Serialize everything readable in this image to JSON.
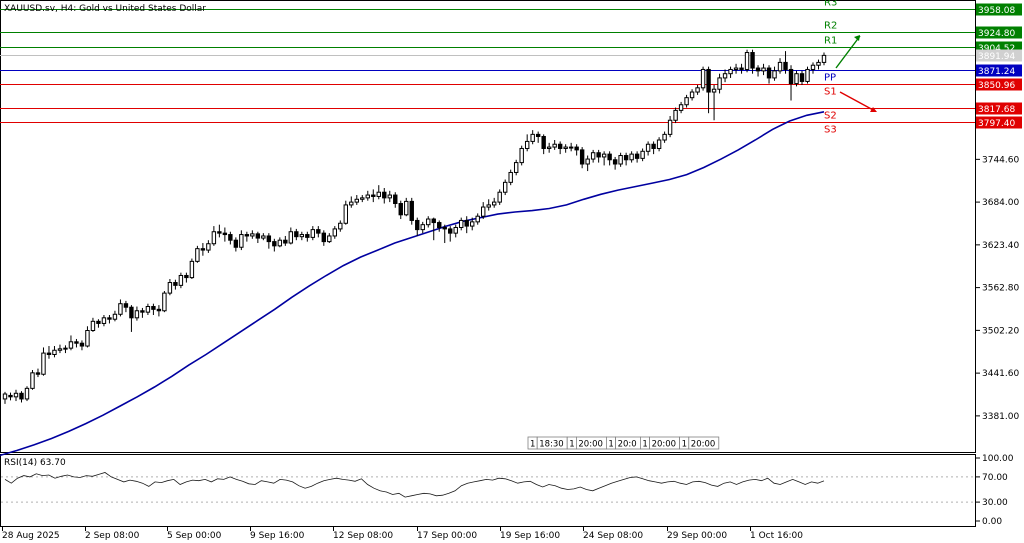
{
  "chart_data": {
    "type": "candlestick",
    "title": "XAUUSD.sv, H4:  Gold vs United States Dollar",
    "price_axis": {
      "ticks": [
        3381.0,
        3441.6,
        3502.2,
        3562.8,
        3623.4,
        3684.0,
        3744.6
      ]
    },
    "levels": [
      {
        "name": "R3",
        "value": "3958.08",
        "color": "#008000"
      },
      {
        "name": "R2",
        "value": "3924.80",
        "color": "#008000"
      },
      {
        "name": "R1",
        "value": "3904.52",
        "color": "#008000"
      },
      {
        "name": "PP",
        "value": "3871.24",
        "color": "#0000c0"
      },
      {
        "name": "S1",
        "value": "3850.96",
        "color": "#e00000"
      },
      {
        "name": "S2",
        "value": "3817.68",
        "color": "#e00000"
      },
      {
        "name": "S3",
        "value": "3797.40",
        "color": "#e00000"
      }
    ],
    "current_price": "3891.94",
    "moving_average": [
      3325,
      3332,
      3340,
      3349,
      3359,
      3370,
      3382,
      3395,
      3408,
      3422,
      3437,
      3453,
      3468,
      3484,
      3500,
      3516,
      3532,
      3549,
      3565,
      3580,
      3594,
      3606,
      3616,
      3626,
      3634,
      3642,
      3650,
      3657,
      3662,
      3667,
      3670,
      3672,
      3675,
      3680,
      3688,
      3695,
      3701,
      3706,
      3711,
      3716,
      3723,
      3733,
      3745,
      3758,
      3772,
      3787,
      3799,
      3807,
      3812
    ],
    "candles": [
      [
        3405,
        3412,
        3398,
        3415
      ],
      [
        3410,
        3408,
        3403,
        3414
      ],
      [
        3408,
        3413,
        3402,
        3418
      ],
      [
        3413,
        3405,
        3400,
        3416
      ],
      [
        3405,
        3420,
        3402,
        3423
      ],
      [
        3420,
        3442,
        3418,
        3446
      ],
      [
        3442,
        3440,
        3436,
        3448
      ],
      [
        3440,
        3470,
        3438,
        3478
      ],
      [
        3470,
        3468,
        3462,
        3480
      ],
      [
        3468,
        3474,
        3464,
        3480
      ],
      [
        3474,
        3476,
        3470,
        3482
      ],
      [
        3476,
        3477,
        3470,
        3481
      ],
      [
        3477,
        3486,
        3474,
        3495
      ],
      [
        3486,
        3484,
        3478,
        3490
      ],
      [
        3484,
        3480,
        3474,
        3488
      ],
      [
        3480,
        3502,
        3478,
        3508
      ],
      [
        3502,
        3515,
        3500,
        3520
      ],
      [
        3515,
        3512,
        3506,
        3518
      ],
      [
        3512,
        3520,
        3508,
        3524
      ],
      [
        3520,
        3518,
        3512,
        3524
      ],
      [
        3518,
        3525,
        3515,
        3530
      ],
      [
        3525,
        3540,
        3522,
        3546
      ],
      [
        3540,
        3535,
        3528,
        3544
      ],
      [
        3535,
        3520,
        3500,
        3538
      ],
      [
        3520,
        3530,
        3516,
        3536
      ],
      [
        3530,
        3528,
        3520,
        3534
      ],
      [
        3528,
        3536,
        3524,
        3540
      ],
      [
        3536,
        3532,
        3524,
        3540
      ],
      [
        3532,
        3530,
        3522,
        3538
      ],
      [
        3530,
        3555,
        3528,
        3558
      ],
      [
        3555,
        3570,
        3552,
        3575
      ],
      [
        3570,
        3566,
        3560,
        3574
      ],
      [
        3566,
        3580,
        3562,
        3584
      ],
      [
        3580,
        3577,
        3570,
        3584
      ],
      [
        3577,
        3600,
        3575,
        3604
      ],
      [
        3600,
        3618,
        3598,
        3622
      ],
      [
        3618,
        3616,
        3608,
        3626
      ],
      [
        3616,
        3625,
        3612,
        3630
      ],
      [
        3625,
        3642,
        3622,
        3650
      ],
      [
        3642,
        3640,
        3634,
        3652
      ],
      [
        3640,
        3638,
        3628,
        3648
      ],
      [
        3638,
        3630,
        3624,
        3642
      ],
      [
        3630,
        3620,
        3614,
        3634
      ],
      [
        3620,
        3638,
        3616,
        3644
      ],
      [
        3638,
        3636,
        3628,
        3642
      ],
      [
        3636,
        3639,
        3632,
        3644
      ],
      [
        3639,
        3633,
        3626,
        3642
      ],
      [
        3633,
        3636,
        3630,
        3640
      ],
      [
        3636,
        3628,
        3618,
        3640
      ],
      [
        3628,
        3622,
        3614,
        3632
      ],
      [
        3622,
        3630,
        3620,
        3634
      ],
      [
        3630,
        3626,
        3622,
        3636
      ],
      [
        3626,
        3642,
        3624,
        3648
      ],
      [
        3642,
        3635,
        3630,
        3646
      ],
      [
        3635,
        3638,
        3630,
        3642
      ],
      [
        3638,
        3634,
        3628,
        3642
      ],
      [
        3634,
        3645,
        3630,
        3650
      ],
      [
        3645,
        3640,
        3634,
        3650
      ],
      [
        3640,
        3628,
        3622,
        3644
      ],
      [
        3628,
        3636,
        3626,
        3640
      ],
      [
        3636,
        3646,
        3632,
        3650
      ],
      [
        3646,
        3654,
        3642,
        3658
      ],
      [
        3654,
        3680,
        3652,
        3686
      ],
      [
        3680,
        3684,
        3676,
        3692
      ],
      [
        3684,
        3688,
        3680,
        3694
      ],
      [
        3688,
        3690,
        3684,
        3694
      ],
      [
        3690,
        3694,
        3686,
        3700
      ],
      [
        3694,
        3692,
        3684,
        3702
      ],
      [
        3692,
        3698,
        3688,
        3708
      ],
      [
        3698,
        3690,
        3682,
        3704
      ],
      [
        3690,
        3694,
        3684,
        3700
      ],
      [
        3694,
        3682,
        3676,
        3698
      ],
      [
        3682,
        3666,
        3660,
        3686
      ],
      [
        3666,
        3685,
        3664,
        3690
      ],
      [
        3685,
        3658,
        3652,
        3690
      ],
      [
        3658,
        3645,
        3636,
        3662
      ],
      [
        3645,
        3652,
        3640,
        3656
      ],
      [
        3652,
        3660,
        3648,
        3664
      ],
      [
        3660,
        3655,
        3630,
        3662
      ],
      [
        3655,
        3648,
        3642,
        3658
      ],
      [
        3648,
        3646,
        3626,
        3652
      ],
      [
        3646,
        3640,
        3628,
        3650
      ],
      [
        3640,
        3648,
        3634,
        3652
      ],
      [
        3648,
        3658,
        3644,
        3662
      ],
      [
        3658,
        3650,
        3640,
        3664
      ],
      [
        3650,
        3656,
        3644,
        3662
      ],
      [
        3656,
        3664,
        3652,
        3668
      ],
      [
        3664,
        3677,
        3660,
        3684
      ],
      [
        3677,
        3680,
        3672,
        3688
      ],
      [
        3680,
        3684,
        3676,
        3690
      ],
      [
        3684,
        3698,
        3680,
        3702
      ],
      [
        3698,
        3712,
        3694,
        3716
      ],
      [
        3712,
        3726,
        3708,
        3730
      ],
      [
        3726,
        3740,
        3722,
        3744
      ],
      [
        3740,
        3760,
        3736,
        3764
      ],
      [
        3760,
        3770,
        3756,
        3780
      ],
      [
        3770,
        3780,
        3766,
        3786
      ],
      [
        3780,
        3777,
        3768,
        3784
      ],
      [
        3777,
        3760,
        3752,
        3780
      ],
      [
        3760,
        3762,
        3754,
        3768
      ],
      [
        3762,
        3766,
        3758,
        3772
      ],
      [
        3766,
        3760,
        3752,
        3770
      ],
      [
        3760,
        3762,
        3754,
        3766
      ],
      [
        3762,
        3762,
        3756,
        3768
      ],
      [
        3762,
        3758,
        3750,
        3766
      ],
      [
        3758,
        3738,
        3732,
        3762
      ],
      [
        3738,
        3745,
        3728,
        3750
      ],
      [
        3745,
        3754,
        3740,
        3758
      ],
      [
        3754,
        3748,
        3740,
        3758
      ],
      [
        3748,
        3752,
        3736,
        3756
      ],
      [
        3752,
        3744,
        3736,
        3756
      ],
      [
        3744,
        3738,
        3730,
        3748
      ],
      [
        3738,
        3750,
        3734,
        3754
      ],
      [
        3750,
        3744,
        3736,
        3754
      ],
      [
        3744,
        3752,
        3740,
        3756
      ],
      [
        3752,
        3746,
        3740,
        3756
      ],
      [
        3746,
        3756,
        3742,
        3760
      ],
      [
        3756,
        3766,
        3750,
        3770
      ],
      [
        3766,
        3760,
        3752,
        3770
      ],
      [
        3760,
        3772,
        3756,
        3776
      ],
      [
        3772,
        3780,
        3768,
        3784
      ],
      [
        3780,
        3800,
        3776,
        3806
      ],
      [
        3800,
        3814,
        3796,
        3818
      ],
      [
        3814,
        3822,
        3810,
        3826
      ],
      [
        3822,
        3832,
        3818,
        3836
      ],
      [
        3832,
        3840,
        3828,
        3844
      ],
      [
        3840,
        3846,
        3836,
        3850
      ],
      [
        3846,
        3872,
        3842,
        3876
      ],
      [
        3872,
        3840,
        3810,
        3876
      ],
      [
        3840,
        3844,
        3800,
        3850
      ],
      [
        3844,
        3860,
        3838,
        3866
      ],
      [
        3860,
        3866,
        3854,
        3872
      ],
      [
        3866,
        3872,
        3860,
        3876
      ],
      [
        3872,
        3874,
        3866,
        3880
      ],
      [
        3874,
        3872,
        3866,
        3880
      ],
      [
        3872,
        3896,
        3868,
        3900
      ],
      [
        3896,
        3874,
        3866,
        3900
      ],
      [
        3874,
        3870,
        3862,
        3878
      ],
      [
        3870,
        3874,
        3864,
        3880
      ],
      [
        3874,
        3860,
        3852,
        3878
      ],
      [
        3860,
        3870,
        3856,
        3876
      ],
      [
        3870,
        3882,
        3866,
        3888
      ],
      [
        3882,
        3872,
        3866,
        3898
      ],
      [
        3872,
        3852,
        3828,
        3878
      ],
      [
        3852,
        3866,
        3848,
        3870
      ],
      [
        3866,
        3855,
        3850,
        3870
      ],
      [
        3855,
        3872,
        3852,
        3876
      ],
      [
        3872,
        3878,
        3866,
        3882
      ],
      [
        3878,
        3882,
        3872,
        3886
      ],
      [
        3882,
        3891.94,
        3878,
        3896
      ]
    ],
    "x_ticks": [
      "28 Aug 2025",
      "2 Sep 08:00",
      "5 Sep 00:00",
      "9 Sep 16:00",
      "12 Sep 08:00",
      "17 Sep 00:00",
      "19 Sep 16:00",
      "24 Sep 08:00",
      "29 Sep 00:00",
      "1 Oct 16:00"
    ],
    "session_labels": [
      "1",
      "18:30",
      "1",
      "20:00",
      "1",
      "20:0",
      "1",
      "20:00",
      "1",
      "20:00"
    ],
    "rsi": {
      "label": "RSI(14) 63.70",
      "ticks": [
        "100.00",
        "70.00",
        "30.00",
        "0.00"
      ],
      "values": [
        66,
        60,
        68,
        72,
        70,
        75,
        72,
        73,
        68,
        71,
        73,
        70,
        69,
        72,
        71,
        74,
        77,
        70,
        66,
        62,
        65,
        63,
        60,
        55,
        62,
        61,
        64,
        66,
        58,
        62,
        65,
        64,
        66,
        62,
        67,
        66,
        70,
        66,
        63,
        59,
        58,
        64,
        62,
        60,
        66,
        65,
        62,
        56,
        52,
        55,
        60,
        64,
        66,
        68,
        66,
        65,
        63,
        67,
        58,
        52,
        48,
        46,
        42,
        44,
        38,
        40,
        42,
        44,
        43,
        40,
        41,
        44,
        48,
        56,
        60,
        62,
        64,
        66,
        65,
        68,
        67,
        64,
        60,
        62,
        63,
        58,
        54,
        58,
        56,
        52,
        50,
        51,
        54,
        50,
        48,
        52,
        56,
        60,
        63,
        66,
        69,
        70,
        67,
        64,
        62,
        60,
        62,
        63,
        60,
        58,
        62,
        63,
        61,
        57,
        55,
        60,
        62,
        58,
        62,
        65,
        66,
        64,
        68,
        60,
        58,
        62,
        66,
        62,
        58,
        62,
        60,
        63.7
      ]
    }
  }
}
